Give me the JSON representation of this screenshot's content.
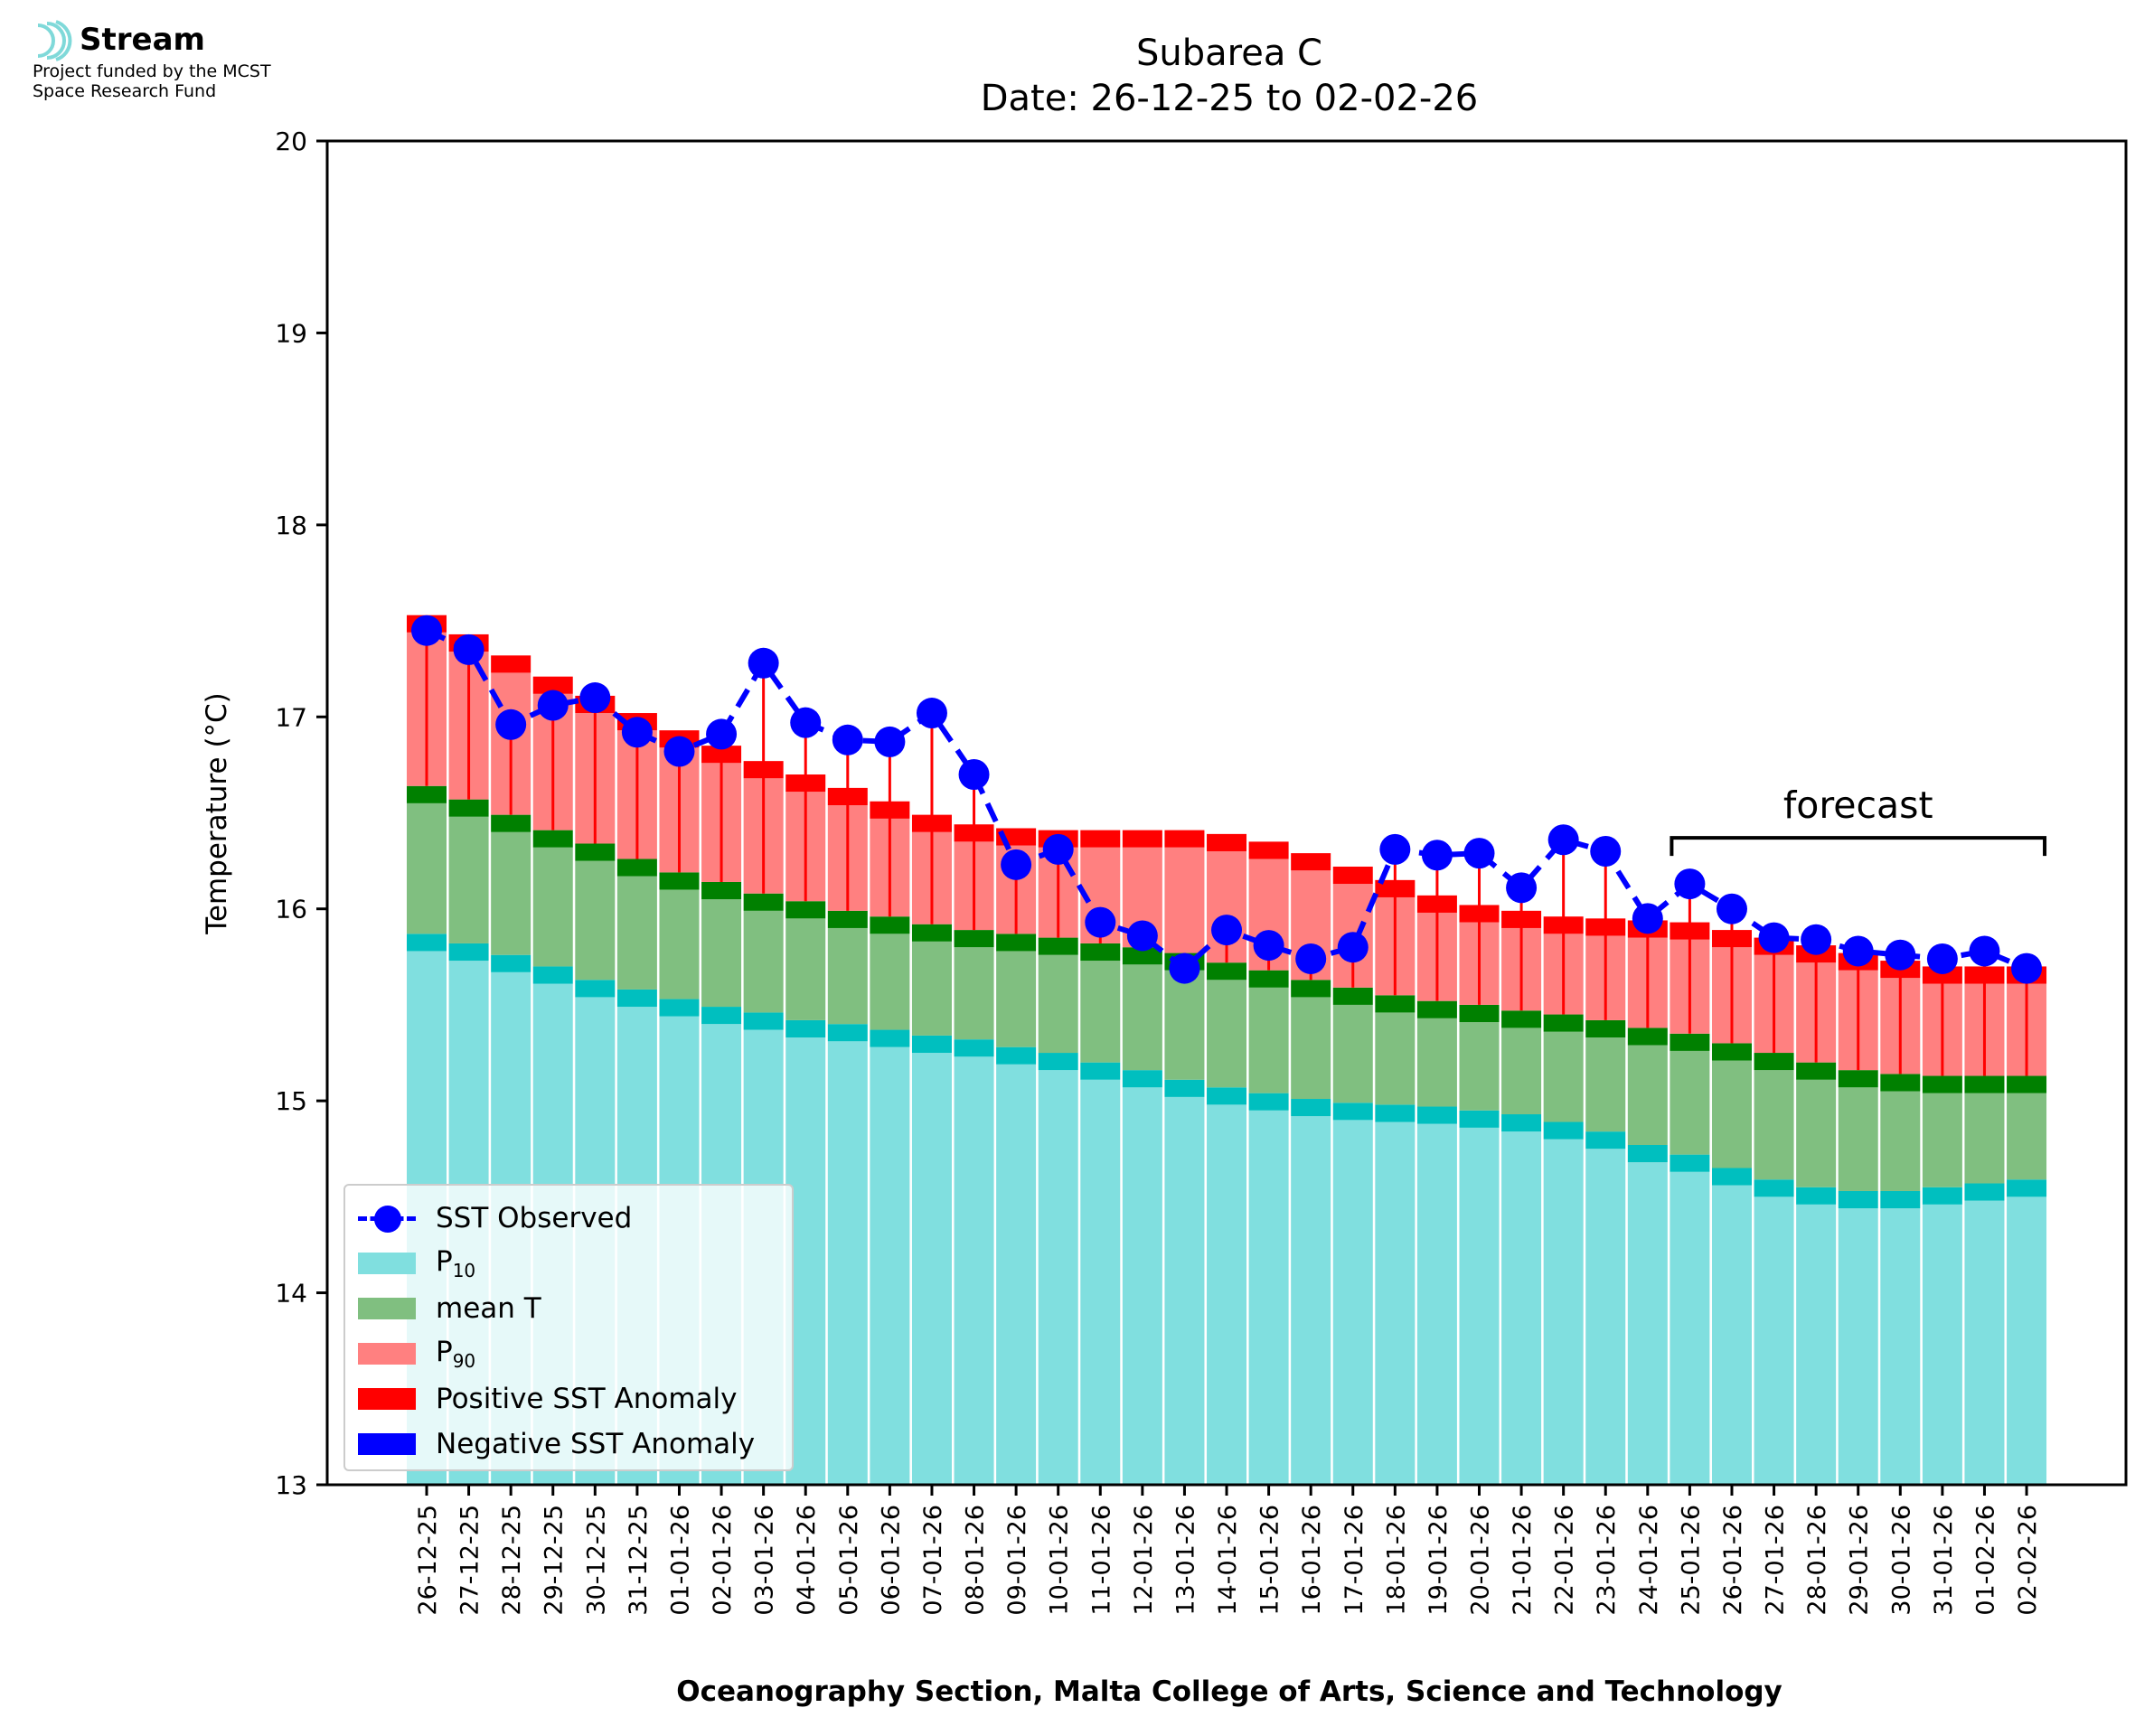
{
  "logo": {
    "name": "Stream",
    "line1": "Project funded by the MCST",
    "line2": "Space Research Fund"
  },
  "colors": {
    "p10": "#80dfdf",
    "mean": "#80bf80",
    "p90": "#ff8080",
    "p10_cap": "#00bfbf",
    "mean_cap": "#008000",
    "p90_cap": "#ff0000",
    "positive_anomaly": "#ff0000",
    "negative_anomaly": "#0000ff",
    "observed": "#0000ff"
  },
  "chart_data": {
    "type": "bar",
    "title": "Subarea C",
    "subtitle": "Date: 26-12-25 to 02-02-26",
    "xlabel": "Oceanography Section, Malta College of Arts, Science and Technology",
    "ylabel": "Temperature (°C)",
    "ylim": [
      13,
      20
    ],
    "yticks": [
      13,
      14,
      15,
      16,
      17,
      18,
      19,
      20
    ],
    "grid": false,
    "legend_placement": "lower-left",
    "categories": [
      "26-12-25",
      "27-12-25",
      "28-12-25",
      "29-12-25",
      "30-12-25",
      "31-12-25",
      "01-01-26",
      "02-01-26",
      "03-01-26",
      "04-01-26",
      "05-01-26",
      "06-01-26",
      "07-01-26",
      "08-01-26",
      "09-01-26",
      "10-01-26",
      "11-01-26",
      "12-01-26",
      "13-01-26",
      "14-01-26",
      "15-01-26",
      "16-01-26",
      "17-01-26",
      "18-01-26",
      "19-01-26",
      "20-01-26",
      "21-01-26",
      "22-01-26",
      "23-01-26",
      "24-01-26",
      "25-01-26",
      "26-01-26",
      "27-01-26",
      "28-01-26",
      "29-01-26",
      "30-01-26",
      "31-01-26",
      "01-02-26",
      "02-02-26"
    ],
    "series": [
      {
        "name": "P10",
        "label_base": "P",
        "label_sub": "10",
        "values": [
          15.87,
          15.82,
          15.76,
          15.7,
          15.63,
          15.58,
          15.53,
          15.49,
          15.46,
          15.42,
          15.4,
          15.37,
          15.34,
          15.32,
          15.28,
          15.25,
          15.2,
          15.16,
          15.11,
          15.07,
          15.04,
          15.01,
          14.99,
          14.98,
          14.97,
          14.95,
          14.93,
          14.89,
          14.84,
          14.77,
          14.72,
          14.65,
          14.59,
          14.55,
          14.53,
          14.53,
          14.55,
          14.57,
          14.59
        ]
      },
      {
        "name": "mean T",
        "values": [
          16.64,
          16.57,
          16.49,
          16.41,
          16.34,
          16.26,
          16.19,
          16.14,
          16.08,
          16.04,
          15.99,
          15.96,
          15.92,
          15.89,
          15.87,
          15.85,
          15.82,
          15.8,
          15.77,
          15.72,
          15.68,
          15.63,
          15.59,
          15.55,
          15.52,
          15.5,
          15.47,
          15.45,
          15.42,
          15.38,
          15.35,
          15.3,
          15.25,
          15.2,
          15.16,
          15.14,
          15.13,
          15.13,
          15.13
        ]
      },
      {
        "name": "P90",
        "label_base": "P",
        "label_sub": "90",
        "values": [
          17.53,
          17.43,
          17.32,
          17.21,
          17.11,
          17.02,
          16.93,
          16.85,
          16.77,
          16.7,
          16.63,
          16.56,
          16.49,
          16.44,
          16.42,
          16.41,
          16.41,
          16.41,
          16.41,
          16.39,
          16.35,
          16.29,
          16.22,
          16.15,
          16.07,
          16.02,
          15.99,
          15.96,
          15.95,
          15.94,
          15.93,
          15.89,
          15.85,
          15.81,
          15.77,
          15.73,
          15.7,
          15.7,
          15.7
        ]
      },
      {
        "name": "SST Observed",
        "values": [
          17.45,
          17.35,
          16.96,
          17.06,
          17.1,
          16.92,
          16.82,
          16.91,
          17.28,
          16.97,
          16.88,
          16.87,
          17.02,
          16.7,
          16.23,
          16.31,
          15.93,
          15.86,
          15.69,
          15.89,
          15.81,
          15.74,
          15.8,
          16.31,
          16.28,
          16.29,
          16.11,
          16.36,
          16.3,
          15.95,
          16.13,
          16.0,
          15.85,
          15.84,
          15.78,
          15.76,
          15.74,
          15.78,
          15.69
        ]
      }
    ],
    "anomaly_legend": [
      "Positive SST Anomaly",
      "Negative SST Anomaly"
    ],
    "annotation": {
      "text": "forecast",
      "from": "25-01-26",
      "to": "02-02-26"
    }
  }
}
